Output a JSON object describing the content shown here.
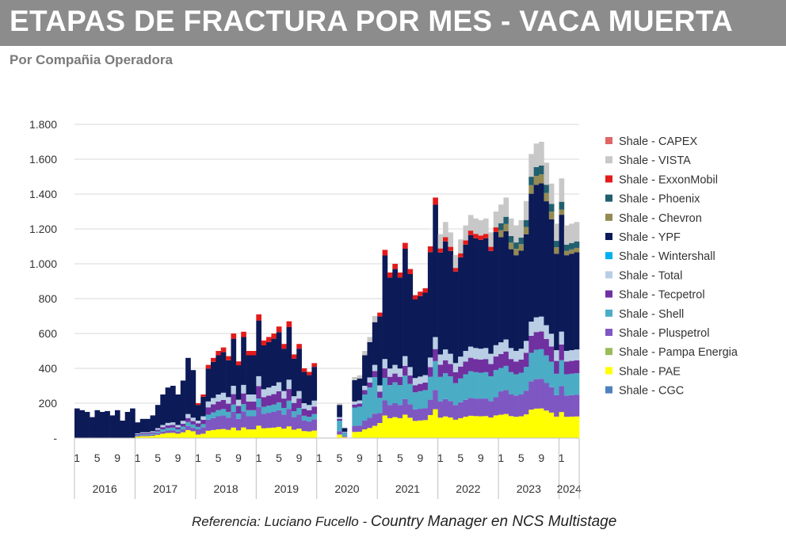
{
  "title": "ETAPAS DE FRACTURA POR MES -  VACA MUERTA",
  "subtitle": "Por Compañia Operadora",
  "reference": {
    "prefix": "Referencia:  Luciano Fucello - ",
    "emphasis": "Country Manager en NCS Multistage"
  },
  "chart_data": {
    "type": "bar",
    "stacked": true,
    "ylim": [
      0,
      1800
    ],
    "yticks": [
      0,
      200,
      400,
      600,
      800,
      1000,
      1200,
      1400,
      1600,
      1800
    ],
    "ytick_labels": [
      "-",
      "200",
      "400",
      "600",
      "800",
      "1.000",
      "1.200",
      "1.400",
      "1.600",
      "1.800"
    ],
    "grid": true,
    "legend_position": "right",
    "years": [
      "2016",
      "2017",
      "2018",
      "2019",
      "2020",
      "2021",
      "2022",
      "2023",
      "2024"
    ],
    "month_tick_labels": [
      "1",
      "5",
      "9"
    ],
    "colors": {
      "Shale - CGC": "#4f81bd",
      "Shale - PAE": "#ffff00",
      "Shale - Pampa Energia": "#9bbb59",
      "Shale - Pluspetrol": "#7e57c2",
      "Shale - Shell": "#4bacc6",
      "Shale - Tecpetrol": "#7030a0",
      "Shale - Total": "#b9cde5",
      "Shale - Wintershall": "#00b0f0",
      "Shale - YPF": "#0c1a57",
      "Shale - Chevron": "#948a54",
      "Shale - Phoenix": "#215f6e",
      "Shale - ExxonMobil": "#e31b1b",
      "Shale - VISTA": "#c8c8c8",
      "Shale - CAPEX": "#e06666"
    },
    "legend": [
      "Shale - CAPEX",
      "Shale - VISTA",
      "Shale - ExxonMobil",
      "Shale - Phoenix",
      "Shale - Chevron",
      "Shale - YPF",
      "Shale - Wintershall",
      "Shale - Total",
      "Shale - Tecpetrol",
      "Shale - Shell",
      "Shale - Pluspetrol",
      "Shale - Pampa Energia",
      "Shale - PAE",
      "Shale - CGC"
    ],
    "stack_order": [
      "Shale - CGC",
      "Shale - PAE",
      "Shale - Pampa Energia",
      "Shale - Pluspetrol",
      "Shale - Shell",
      "Shale - Tecpetrol",
      "Shale - Total",
      "Shale - Wintershall",
      "Shale - YPF",
      "Shale - Chevron",
      "Shale - Phoenix",
      "Shale - ExxonMobil",
      "Shale - VISTA",
      "Shale - CAPEX"
    ],
    "totals": [
      170,
      160,
      150,
      120,
      160,
      150,
      155,
      130,
      160,
      100,
      150,
      170,
      90,
      110,
      110,
      130,
      190,
      250,
      290,
      300,
      250,
      330,
      460,
      390,
      200,
      250,
      420,
      460,
      500,
      520,
      470,
      600,
      440,
      610,
      500,
      500,
      710,
      560,
      580,
      600,
      640,
      540,
      670,
      480,
      540,
      400,
      380,
      430,
      0,
      0,
      0,
      0,
      200,
      60,
      0,
      350,
      360,
      500,
      580,
      700,
      720,
      1080,
      950,
      1000,
      950,
      1120,
      970,
      820,
      840,
      860,
      1100,
      1380,
      1170,
      1240,
      1180,
      1050,
      1140,
      1220,
      1280,
      1260,
      1250,
      1260,
      1180,
      1300,
      1340,
      1380,
      1260,
      1220,
      1250,
      1360,
      1630,
      1690,
      1700,
      1580,
      1460,
      1230,
      1490,
      1220,
      1230,
      1240
    ],
    "fractions": [
      {
        "year": "2016",
        "PAE": 0.0,
        "Pluspetrol": 0.0,
        "Shell": 0.0,
        "Tecpetrol": 0.0,
        "Total": 0.0,
        "YPF": 1.0
      },
      {
        "year": "2017",
        "PAE": 0.1,
        "Pluspetrol": 0.05,
        "Shell": 0.05,
        "Tecpetrol": 0.05,
        "Total": 0.05,
        "YPF": 0.7
      },
      {
        "year": "2018",
        "PAE": 0.1,
        "Pluspetrol": 0.15,
        "Shell": 0.07,
        "Tecpetrol": 0.1,
        "Total": 0.08,
        "YPF": 0.45,
        "ExxonMobil": 0.05
      },
      {
        "year": "2019",
        "PAE": 0.1,
        "Pluspetrol": 0.15,
        "Shell": 0.07,
        "Tecpetrol": 0.1,
        "Total": 0.08,
        "YPF": 0.45,
        "ExxonMobil": 0.05
      },
      {
        "year": "2020",
        "PAE": 0.1,
        "Pluspetrol": 0.1,
        "Shell": 0.3,
        "Tecpetrol": 0.05,
        "Total": 0.05,
        "YPF": 0.35,
        "VISTA": 0.05
      },
      {
        "year": "2021",
        "PAE": 0.12,
        "Pluspetrol": 0.08,
        "Shell": 0.12,
        "Tecpetrol": 0.05,
        "Total": 0.05,
        "YPF": 0.55,
        "ExxonMobil": 0.03
      },
      {
        "year": "2022",
        "PAE": 0.1,
        "Pluspetrol": 0.08,
        "Shell": 0.12,
        "Tecpetrol": 0.06,
        "Total": 0.05,
        "YPF": 0.5,
        "VISTA": 0.07,
        "ExxonMobil": 0.02
      },
      {
        "year": "2023",
        "PAE": 0.1,
        "Pluspetrol": 0.1,
        "Shell": 0.1,
        "Tecpetrol": 0.06,
        "Total": 0.05,
        "YPF": 0.45,
        "VISTA": 0.08,
        "Phoenix": 0.03,
        "Chevron": 0.03
      },
      {
        "year": "2024",
        "PAE": 0.1,
        "Pluspetrol": 0.1,
        "Shell": 0.1,
        "Tecpetrol": 0.06,
        "Total": 0.05,
        "YPF": 0.45,
        "VISTA": 0.09,
        "Phoenix": 0.03,
        "Chevron": 0.02
      }
    ]
  }
}
